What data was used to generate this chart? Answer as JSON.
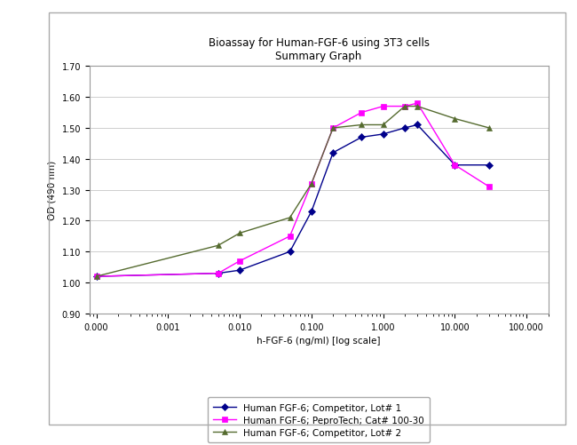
{
  "title_line1": "Bioassay for Human-FGF-6 using 3T3 cells",
  "title_line2": "Summary Graph",
  "xlabel": "h-FGF-6 (ng/ml) [log scale]",
  "ylabel": "OD (490 nm)",
  "ylim": [
    0.9,
    1.7
  ],
  "yticks": [
    0.9,
    1.0,
    1.1,
    1.2,
    1.3,
    1.4,
    1.5,
    1.6,
    1.7
  ],
  "series": [
    {
      "label": "Human FGF-6; Competitor, Lot# 1",
      "color": "#00008B",
      "marker": "D",
      "markersize": 4,
      "x": [
        0.0001,
        0.005,
        0.01,
        0.05,
        0.1,
        0.2,
        0.5,
        1.0,
        2.0,
        3.0,
        10.0,
        30.0
      ],
      "y": [
        1.02,
        1.03,
        1.04,
        1.1,
        1.23,
        1.42,
        1.47,
        1.48,
        1.5,
        1.51,
        1.38,
        1.38
      ]
    },
    {
      "label": "Human FGF-6; PeproTech; Cat# 100-30",
      "color": "#FF00FF",
      "marker": "s",
      "markersize": 4,
      "x": [
        0.0001,
        0.005,
        0.01,
        0.05,
        0.1,
        0.2,
        0.5,
        1.0,
        2.0,
        3.0,
        10.0,
        30.0
      ],
      "y": [
        1.02,
        1.03,
        1.07,
        1.15,
        1.32,
        1.5,
        1.55,
        1.57,
        1.57,
        1.58,
        1.38,
        1.31
      ]
    },
    {
      "label": "Human FGF-6; Competitor, Lot# 2",
      "color": "#556B2F",
      "marker": "^",
      "markersize": 4,
      "x": [
        0.0001,
        0.005,
        0.01,
        0.05,
        0.1,
        0.2,
        0.5,
        1.0,
        2.0,
        3.0,
        10.0,
        30.0
      ],
      "y": [
        1.02,
        1.12,
        1.16,
        1.21,
        1.32,
        1.5,
        1.51,
        1.51,
        1.57,
        1.57,
        1.53,
        1.5
      ]
    }
  ],
  "xtick_labels": [
    "0.000",
    "0.001",
    "0.010",
    "0.100",
    "1.000",
    "10.000",
    "100.000"
  ],
  "xtick_positions": [
    0.0001,
    0.001,
    0.01,
    0.1,
    1.0,
    10.0,
    100.0
  ],
  "background_color": "#ffffff",
  "plot_bg_color": "#ffffff",
  "grid_color": "#bbbbbb",
  "border_color": "#999999",
  "outer_frame_color": "#aaaaaa"
}
